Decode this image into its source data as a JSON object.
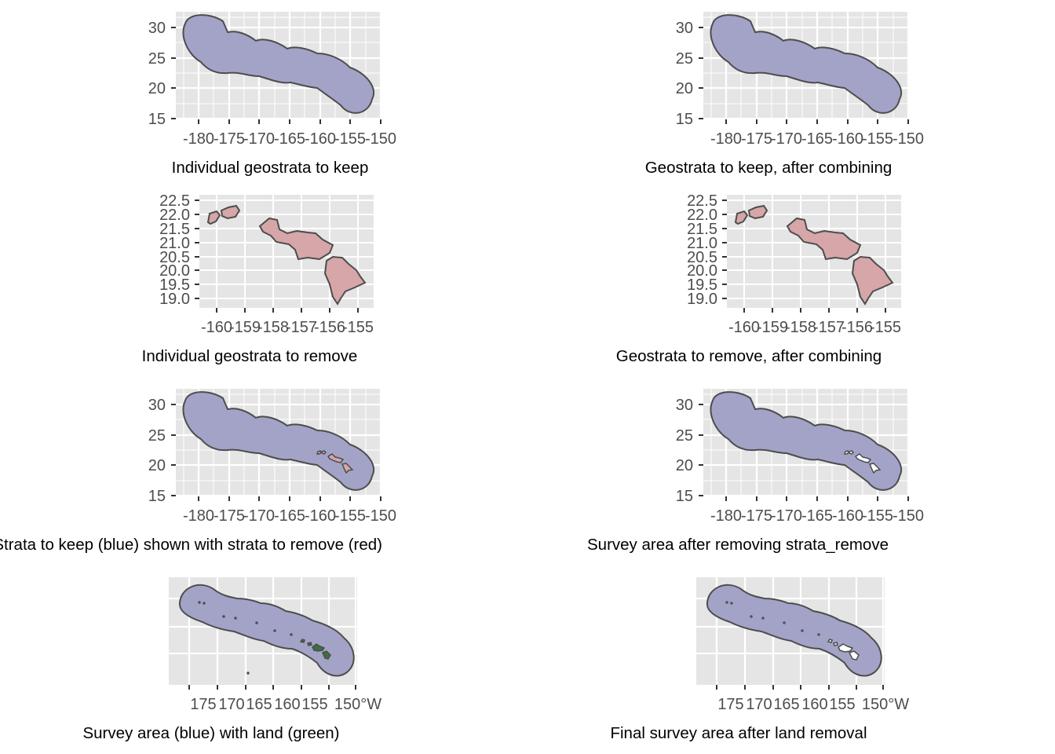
{
  "colors": {
    "panel_background": "#e5e5e5",
    "grid": "#ffffff",
    "keep_fill": "#a3a3c8",
    "remove_fill": "#d6a6a9",
    "land_fill": "#3b6f3b",
    "outline": "#4d4d4d",
    "tick_text": "#4d4d4d"
  },
  "chart_data": [
    {
      "type": "map",
      "caption": "Individual geostrata to keep",
      "layers": [
        "keep"
      ],
      "x_ticks": [
        "-180",
        "-175",
        "-170",
        "-165",
        "-160",
        "-155",
        "-150"
      ],
      "y_ticks": [
        "15",
        "20",
        "25",
        "30"
      ],
      "xlim": [
        -183.6,
        -149.8
      ],
      "ylim": [
        14.5,
        32.2
      ]
    },
    {
      "type": "map",
      "caption": "Geostrata to keep, after combining",
      "layers": [
        "keep"
      ],
      "x_ticks": [
        "-180",
        "-175",
        "-170",
        "-165",
        "-160",
        "-155",
        "-150"
      ],
      "y_ticks": [
        "15",
        "20",
        "25",
        "30"
      ],
      "xlim": [
        -183.6,
        -149.8
      ],
      "ylim": [
        14.5,
        32.2
      ]
    },
    {
      "type": "map",
      "caption": "Individual geostrata to remove",
      "layers": [
        "remove"
      ],
      "x_ticks": [
        "-160",
        "-159",
        "-158",
        "-157",
        "-156",
        "-155"
      ],
      "y_ticks": [
        "19.0",
        "19.5",
        "20.0",
        "20.5",
        "21.0",
        "21.5",
        "22.0",
        "22.5"
      ],
      "xlim": [
        -160.5,
        -154.5
      ],
      "ylim": [
        18.8,
        22.6
      ]
    },
    {
      "type": "map",
      "caption": "Geostrata to remove, after combining",
      "layers": [
        "remove"
      ],
      "x_ticks": [
        "-160",
        "-159",
        "-158",
        "-157",
        "-156",
        "-155"
      ],
      "y_ticks": [
        "19.0",
        "19.5",
        "20.0",
        "20.5",
        "21.0",
        "21.5",
        "22.0",
        "22.5"
      ],
      "xlim": [
        -160.5,
        -154.5
      ],
      "ylim": [
        18.8,
        22.6
      ]
    },
    {
      "type": "map",
      "caption": "Strata to keep (blue) shown with strata to remove (red)",
      "layers": [
        "keep",
        "remove_small"
      ],
      "x_ticks": [
        "-180",
        "-175",
        "-170",
        "-165",
        "-160",
        "-155",
        "-150"
      ],
      "y_ticks": [
        "15",
        "20",
        "25",
        "30"
      ],
      "xlim": [
        -183.6,
        -149.8
      ],
      "ylim": [
        14.5,
        32.2
      ]
    },
    {
      "type": "map",
      "caption": "Survey area after removing strata_remove",
      "layers": [
        "keep",
        "holes"
      ],
      "x_ticks": [
        "-180",
        "-175",
        "-170",
        "-165",
        "-160",
        "-155",
        "-150"
      ],
      "y_ticks": [
        "15",
        "20",
        "25",
        "30"
      ],
      "xlim": [
        -183.6,
        -149.8
      ],
      "ylim": [
        14.5,
        32.2
      ]
    },
    {
      "type": "map",
      "caption": "Survey area (blue) with land (green)",
      "layers": [
        "keep",
        "land"
      ],
      "x_ticks": [
        "175",
        "170",
        "165",
        "160",
        "155",
        "150°W"
      ],
      "y_ticks": [],
      "xlim": [
        -183.6,
        -149.8
      ],
      "ylim": [
        14.5,
        32.2
      ]
    },
    {
      "type": "map",
      "caption": "Final survey area after land removal",
      "layers": [
        "keep",
        "holes_dots"
      ],
      "x_ticks": [
        "175",
        "170",
        "165",
        "160",
        "155",
        "150°W"
      ],
      "y_ticks": [],
      "xlim": [
        -183.6,
        -149.8
      ],
      "ylim": [
        14.5,
        32.2
      ]
    }
  ]
}
